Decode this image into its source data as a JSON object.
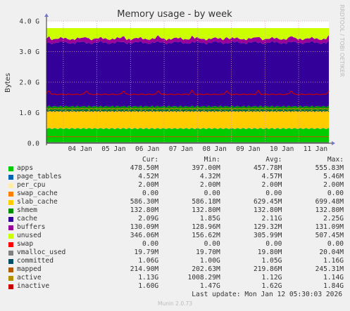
{
  "chart_data": {
    "type": "area",
    "title": "Memory usage - by week",
    "ylabel": "Bytes",
    "side_text": "RRDTOOL / TOBI OETIKER",
    "yticks": [
      "0.0",
      "1.0 G",
      "2.0 G",
      "3.0 G",
      "4.0 G"
    ],
    "ylim": [
      0,
      4.0
    ],
    "xticks": [
      "04 Jan",
      "05 Jan",
      "06 Jan",
      "07 Jan",
      "08 Jan",
      "09 Jan",
      "10 Jan",
      "11 Jan"
    ],
    "xlim_days": [
      3.5,
      11.9
    ],
    "stack_order": [
      "apps",
      "page_tables",
      "per_cpu",
      "swap_cache",
      "slab_cache",
      "shmem",
      "cache",
      "buffers",
      "unused",
      "swap"
    ],
    "stack_gb": {
      "apps": 0.4786,
      "page_tables": 0.0045,
      "per_cpu": 0.002,
      "swap_cache": 0.0,
      "slab_cache": 0.5863,
      "shmem": 0.1328,
      "cache": 2.09,
      "buffers": 0.1301,
      "unused": 0.346,
      "swap": 0.0
    },
    "line_gb": {
      "vmalloc_used": 0.0198,
      "committed": 1.06,
      "mapped": 0.2149,
      "active": 1.13,
      "inactive": 1.6
    },
    "periodic_spike_days": [
      3.57,
      4.69,
      5.79,
      6.83,
      7.83,
      8.86,
      9.8,
      10.78,
      11.9
    ],
    "grid": true,
    "legend_position": "bottom"
  },
  "legend": {
    "headers": [
      "Cur:",
      "Min:",
      "Avg:",
      "Max:"
    ],
    "rows": [
      {
        "name": "apps",
        "color": "#00cc00",
        "cur": "478.50M",
        "min": "397.00M",
        "avg": "457.78M",
        "max": "555.83M"
      },
      {
        "name": "page_tables",
        "color": "#0066b3",
        "cur": "4.52M",
        "min": "4.32M",
        "avg": "4.57M",
        "max": "5.46M"
      },
      {
        "name": "per_cpu",
        "color": "#ffeeaa",
        "cur": "2.00M",
        "min": "2.00M",
        "avg": "2.00M",
        "max": "2.00M"
      },
      {
        "name": "swap_cache",
        "color": "#ff8000",
        "cur": "0.00",
        "min": "0.00",
        "avg": "0.00",
        "max": "0.00"
      },
      {
        "name": "slab_cache",
        "color": "#ffcc00",
        "cur": "586.30M",
        "min": "586.18M",
        "avg": "629.45M",
        "max": "699.48M"
      },
      {
        "name": "shmem",
        "color": "#008f00",
        "cur": "132.80M",
        "min": "132.80M",
        "avg": "132.80M",
        "max": "132.80M"
      },
      {
        "name": "cache",
        "color": "#330099",
        "cur": "2.09G",
        "min": "1.85G",
        "avg": "2.11G",
        "max": "2.25G"
      },
      {
        "name": "buffers",
        "color": "#990099",
        "cur": "130.09M",
        "min": "128.96M",
        "avg": "129.32M",
        "max": "131.09M"
      },
      {
        "name": "unused",
        "color": "#ccff00",
        "cur": "346.06M",
        "min": "156.62M",
        "avg": "305.99M",
        "max": "507.45M"
      },
      {
        "name": "swap",
        "color": "#ff0000",
        "cur": "0.00",
        "min": "0.00",
        "avg": "0.00",
        "max": "0.00"
      },
      {
        "name": "vmalloc_used",
        "color": "#808080",
        "cur": "19.79M",
        "min": "19.70M",
        "avg": "19.80M",
        "max": "20.04M"
      },
      {
        "name": "committed",
        "color": "#004d66",
        "cur": "1.06G",
        "min": "1.00G",
        "avg": "1.05G",
        "max": "1.16G"
      },
      {
        "name": "mapped",
        "color": "#b35a00",
        "cur": "214.90M",
        "min": "202.63M",
        "avg": "219.86M",
        "max": "245.31M"
      },
      {
        "name": "active",
        "color": "#b38f00",
        "cur": "1.13G",
        "min": "1008.29M",
        "avg": "1.12G",
        "max": "1.14G"
      },
      {
        "name": "inactive",
        "color": "#cc0000",
        "cur": "1.60G",
        "min": "1.47G",
        "avg": "1.62G",
        "max": "1.84G"
      }
    ]
  },
  "footer": {
    "last_update": "Last update: Mon Jan 12 05:30:03 2026",
    "version": "Munin 2.0.73"
  }
}
